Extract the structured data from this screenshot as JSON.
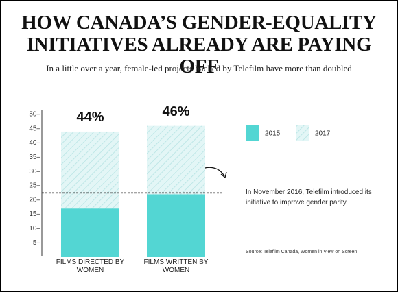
{
  "chart_data": {
    "type": "overlap-bar",
    "title": "HOW CANADA’S GENDER-EQUALITY INITIATIVES ALREADY ARE PAYING OFF",
    "subtitle": "In a little over a year, female-led projects backed by Telefilm have more than doubled",
    "categories": [
      "FILMS DIRECTED BY WOMEN",
      "FILMS WRITTEN BY WOMEN"
    ],
    "series": [
      {
        "name": "2017",
        "color": "#c9eeee",
        "pattern": "hatch",
        "values": [
          44,
          46
        ],
        "value_labels": [
          "44%",
          "46%"
        ]
      },
      {
        "name": "2015",
        "color": "#53d6d3",
        "pattern": "solid",
        "values": [
          17,
          22
        ]
      }
    ],
    "ylim": [
      0,
      50
    ],
    "yticks": [
      {
        "value": 5,
        "label": "5–"
      },
      {
        "value": 10,
        "label": "10–"
      },
      {
        "value": 15,
        "label": "15–"
      },
      {
        "value": 20,
        "label": "20–"
      },
      {
        "value": 25,
        "label": "25–"
      },
      {
        "value": 30,
        "label": "30–"
      },
      {
        "value": 35,
        "label": "35–"
      },
      {
        "value": 40,
        "label": "40–"
      },
      {
        "value": 45,
        "label": "45–"
      },
      {
        "value": 50,
        "label": "50–"
      }
    ],
    "reference_line": 22.5,
    "annotation": "In November 2016, Telefilm introduced its initiative to improve gender parity.",
    "source": "Source: Telefilm Canada, Women in View on Screen"
  }
}
